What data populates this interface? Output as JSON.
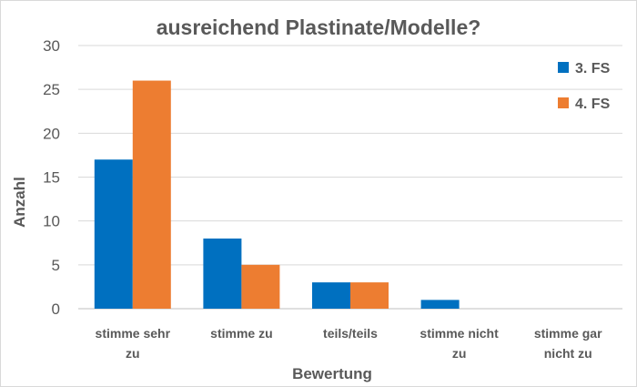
{
  "chart_data": {
    "type": "bar",
    "title": "ausreichend Plastinate/Modelle?",
    "xlabel": "Bewertung",
    "ylabel": "Anzahl",
    "ylim": [
      0,
      30
    ],
    "yticks": [
      0,
      5,
      10,
      15,
      20,
      25,
      30
    ],
    "grid": true,
    "legend_position": "top-right",
    "categories": [
      [
        "stimme sehr",
        "zu"
      ],
      [
        "stimme zu"
      ],
      [
        "teils/teils"
      ],
      [
        "stimme nicht",
        "zu"
      ],
      [
        "stimme gar",
        "nicht zu"
      ]
    ],
    "series": [
      {
        "name": "3. FS",
        "color": "#0070c0",
        "values": [
          17,
          8,
          3,
          1,
          0
        ]
      },
      {
        "name": "4. FS",
        "color": "#ed7d31",
        "values": [
          26,
          5,
          3,
          0,
          0
        ]
      }
    ]
  }
}
